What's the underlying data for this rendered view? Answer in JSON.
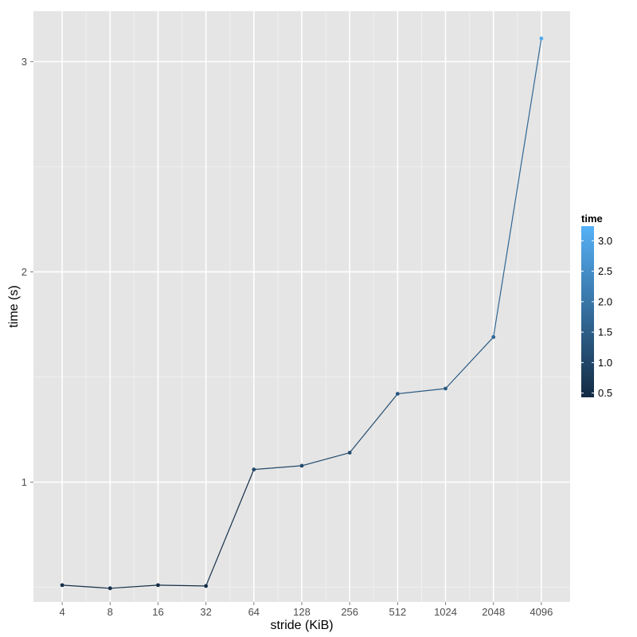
{
  "chart_data": {
    "type": "line",
    "xlabel": "stride (KiB)",
    "ylabel": "time (s)",
    "categories": [
      "4",
      "8",
      "16",
      "32",
      "64",
      "128",
      "256",
      "512",
      "1024",
      "2048",
      "4096"
    ],
    "series": [
      {
        "values": [
          0.51,
          0.495,
          0.51,
          0.506,
          1.06,
          1.078,
          1.14,
          1.42,
          1.445,
          1.69,
          3.11
        ]
      }
    ],
    "yticks": [
      "1",
      "2",
      "3"
    ],
    "ylim": [
      0.43,
      3.24
    ],
    "grid": true,
    "legend": {
      "title": "time",
      "position": "right",
      "type": "colorbar",
      "ticks": [
        "0.5",
        "1.0",
        "1.5",
        "2.0",
        "2.5",
        "3.0"
      ],
      "range": [
        0.43,
        3.24
      ],
      "low_color": "#132B43",
      "high_color": "#56B1F7"
    }
  },
  "colors": {
    "panel_background": "#E5E5E5",
    "grid_major": "#FFFFFF",
    "grid_minor": "#F2F2F2"
  }
}
